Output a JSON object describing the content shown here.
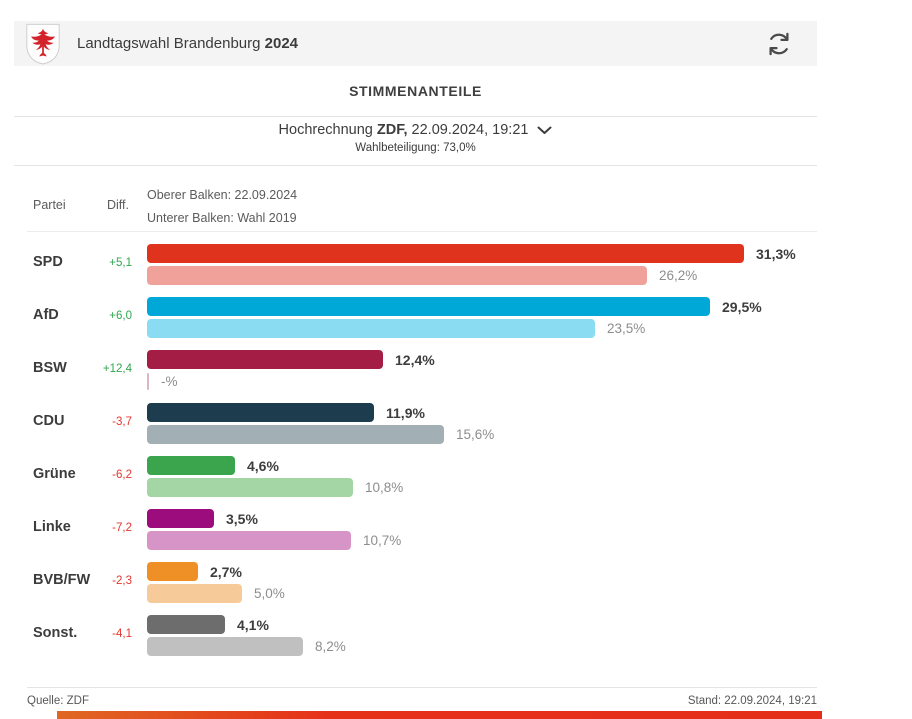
{
  "header": {
    "title": "Landtagswahl Brandenburg",
    "year": "2024"
  },
  "section_title": "STIMMENANTEILE",
  "projection": {
    "label": "Hochrechnung",
    "source": "ZDF,",
    "datetime": "22.09.2024, 19:21",
    "turnout": "Wahlbeteiligung: 73,0%"
  },
  "legend": {
    "party_col": "Partei",
    "diff_col": "Diff.",
    "upper_bar": "Oberer Balken: 22.09.2024",
    "lower_bar": "Unterer Balken: Wahl 2019"
  },
  "footer": {
    "source": "Quelle: ZDF",
    "stand": "Stand: 22.09.2024, 19:21"
  },
  "colors": {
    "diff_positive": "#2fa64e",
    "diff_negative": "#e2372f",
    "header_bg": "#f4f4f4",
    "text_dark": "#3c3c3c",
    "text_gray": "#8d8d8d",
    "bottom_accent": [
      "#df6722",
      "#e52e1a"
    ]
  },
  "chart_data": {
    "type": "bar",
    "orientation": "horizontal",
    "title": "STIMMENANTEILE",
    "subtitle": "Hochrechnung ZDF, 22.09.2024, 19:21 — Wahlbeteiligung: 73,0%",
    "categories": [
      "SPD",
      "AfD",
      "BSW",
      "CDU",
      "Grüne",
      "Linke",
      "BVB/FW",
      "Sonst."
    ],
    "series": [
      {
        "name": "Oberer Balken: 22.09.2024",
        "values": [
          31.3,
          29.5,
          12.4,
          11.9,
          4.6,
          3.5,
          2.7,
          4.1
        ]
      },
      {
        "name": "Unterer Balken: Wahl 2019",
        "values": [
          26.2,
          23.5,
          null,
          15.6,
          10.8,
          10.7,
          5.0,
          8.2
        ]
      }
    ],
    "xlim": [
      0,
      35.2
    ],
    "grid": false,
    "legend_position": "top-left",
    "rows": [
      {
        "party": "SPD",
        "diff": "+5,1",
        "diff_type": "pos",
        "value_2024": 31.3,
        "label_2024": "31,3%",
        "value_2019": 26.2,
        "label_2019": "26,2%",
        "color_2024": "#e0331e",
        "color_2019": "#f0a29a"
      },
      {
        "party": "AfD",
        "diff": "+6,0",
        "diff_type": "pos",
        "value_2024": 29.5,
        "label_2024": "29,5%",
        "value_2019": 23.5,
        "label_2019": "23,5%",
        "color_2024": "#00a8d8",
        "color_2019": "#8adcf3"
      },
      {
        "party": "BSW",
        "diff": "+12,4",
        "diff_type": "pos",
        "value_2024": 12.4,
        "label_2024": "12,4%",
        "value_2019": null,
        "label_2019": "-%",
        "color_2024": "#a41d45",
        "color_2019": "#dcb6c2"
      },
      {
        "party": "CDU",
        "diff": "-3,7",
        "diff_type": "neg",
        "value_2024": 11.9,
        "label_2024": "11,9%",
        "value_2019": 15.6,
        "label_2019": "15,6%",
        "color_2024": "#1d3c4d",
        "color_2019": "#a2b0b6"
      },
      {
        "party": "Grüne",
        "diff": "-6,2",
        "diff_type": "neg",
        "value_2024": 4.6,
        "label_2024": "4,6%",
        "value_2019": 10.8,
        "label_2019": "10,8%",
        "color_2024": "#3ba54d",
        "color_2019": "#a3d5a5"
      },
      {
        "party": "Linke",
        "diff": "-7,2",
        "diff_type": "neg",
        "value_2024": 3.5,
        "label_2024": "3,5%",
        "value_2019": 10.7,
        "label_2019": "10,7%",
        "color_2024": "#9c0c7c",
        "color_2019": "#d794c6"
      },
      {
        "party": "BVB/FW",
        "diff": "-2,3",
        "diff_type": "neg",
        "value_2024": 2.7,
        "label_2024": "2,7%",
        "value_2019": 5.0,
        "label_2019": "5,0%",
        "color_2024": "#ee9026",
        "color_2019": "#f7ca99"
      },
      {
        "party": "Sonst.",
        "diff": "-4,1",
        "diff_type": "neg",
        "value_2024": 4.1,
        "label_2024": "4,1%",
        "value_2019": 8.2,
        "label_2019": "8,2%",
        "color_2024": "#6d6d6d",
        "color_2019": "#c0c0c0"
      }
    ]
  }
}
